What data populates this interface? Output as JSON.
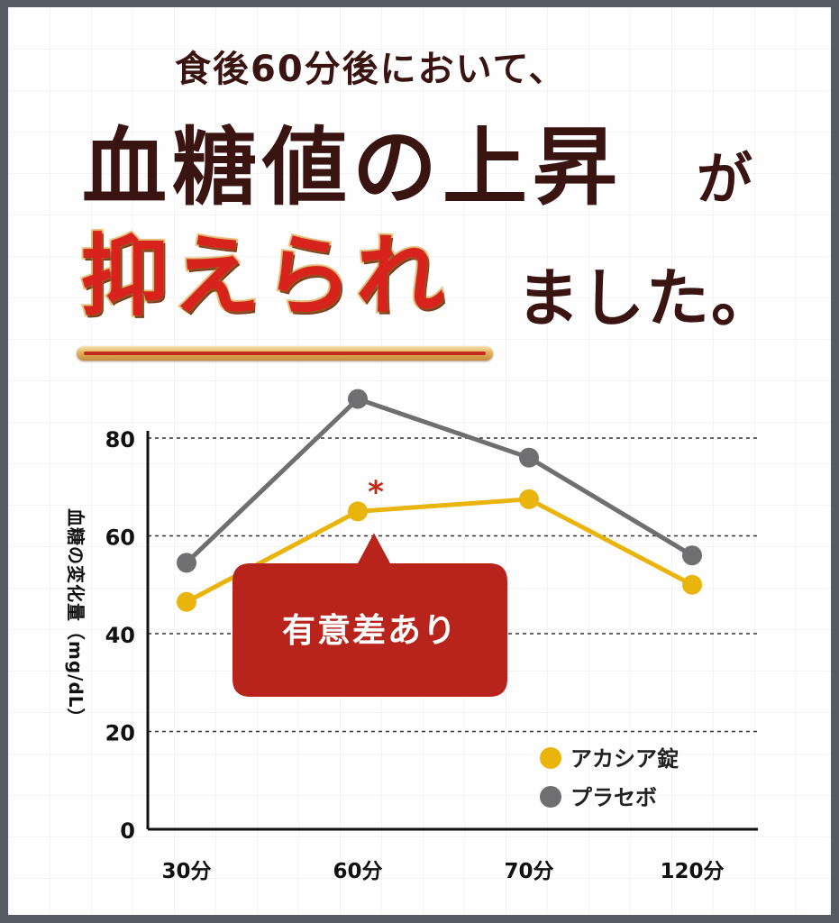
{
  "headline": {
    "line1": "食後60分後において、",
    "line2": "血糖値の上昇",
    "line2_particle": "が",
    "emphasis": "抑えられ",
    "ending": "ました。"
  },
  "colors": {
    "acacia": "#e9b40c",
    "placebo": "#6f6f72",
    "accent_red": "#c0281a",
    "dark_text": "#3a1410"
  },
  "chart_data": {
    "type": "line",
    "categories": [
      "30分",
      "60分",
      "70分",
      "120分"
    ],
    "series": [
      {
        "name": "アカシア錠",
        "values": [
          46.5,
          65,
          67.5,
          50
        ]
      },
      {
        "name": "プラセボ",
        "values": [
          54.5,
          88,
          76,
          56
        ]
      }
    ],
    "ylabel": "血糖の変化量（mg/dL）",
    "xlabel": "",
    "yticks": [
      0,
      20,
      40,
      60,
      80
    ],
    "ylim": [
      0,
      92
    ],
    "grid": "dotted horizontal",
    "legend": "bottom-right",
    "annotation": {
      "marker": "*",
      "label": "有意差あり",
      "category": "60分",
      "series": "アカシア錠"
    }
  }
}
